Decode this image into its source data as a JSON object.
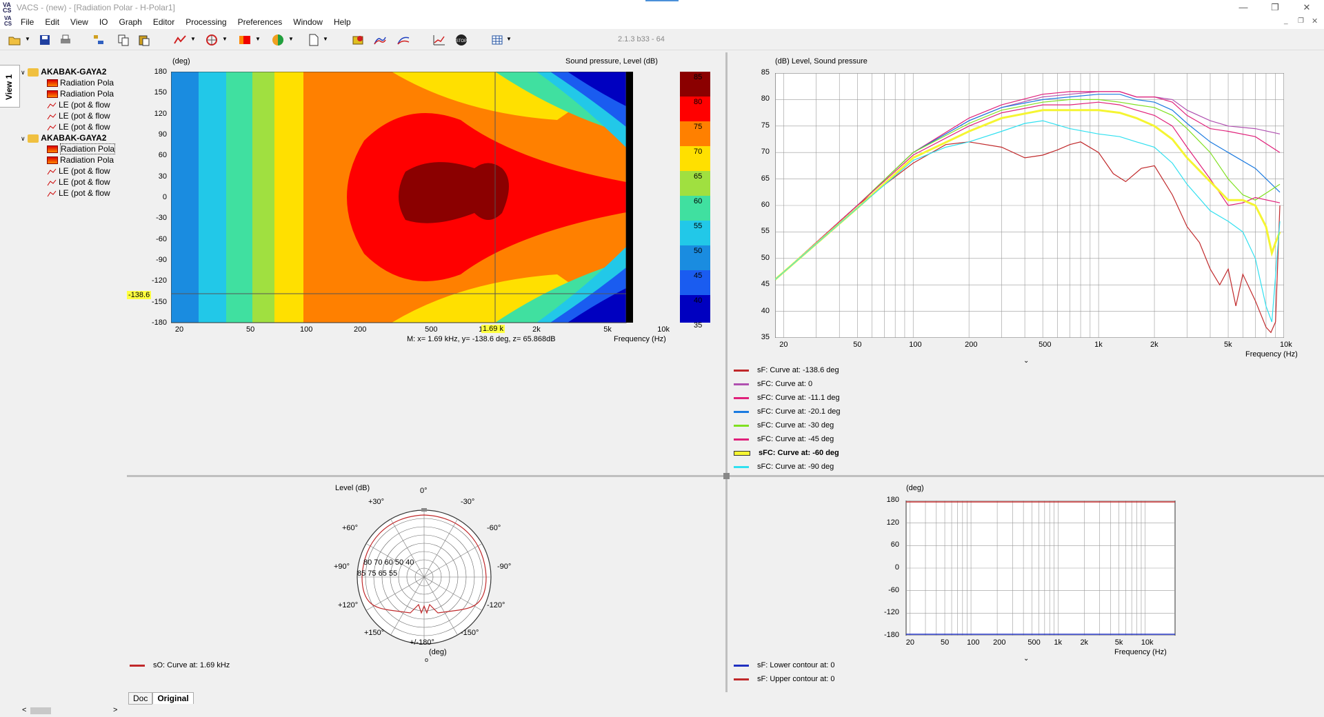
{
  "window": {
    "title": "VACS - (new) - [Radiation Polar - H-Polar1]",
    "version": "2.1.3 b33 - 64"
  },
  "menu": [
    "File",
    "Edit",
    "View",
    "IO",
    "Graph",
    "Editor",
    "Processing",
    "Preferences",
    "Window",
    "Help"
  ],
  "sidebar": {
    "tab": "View 1",
    "groups": [
      {
        "label": "AKABAK-GAYA2",
        "items": [
          "Radiation Pola",
          "Radiation Pola",
          "LE (pot & flow",
          "LE (pot & flow",
          "LE (pot & flow"
        ]
      },
      {
        "label": "AKABAK-GAYA2",
        "items": [
          "Radiation Pola",
          "Radiation Pola",
          "LE (pot & flow",
          "LE (pot & flow",
          "LE (pot & flow"
        ]
      }
    ]
  },
  "contour": {
    "ylabel": "(deg)",
    "zlabel": "Sound pressure, Level  (dB)",
    "yticks": [
      "180",
      "150",
      "120",
      "90",
      "60",
      "30",
      "0",
      "-30",
      "-60",
      "-90",
      "-120",
      "-150",
      "-180"
    ],
    "xticks": [
      "20",
      "50",
      "100",
      "200",
      "500",
      "1k",
      "2k",
      "5k",
      "10k"
    ],
    "xlabel": "Frequency  (Hz)",
    "colorbar": [
      "85",
      "80",
      "75",
      "70",
      "65",
      "60",
      "55",
      "50",
      "45",
      "40",
      "35"
    ],
    "cursor_x_label": "1.69 k",
    "cursor_y_label": "-138.6",
    "marker_readout": "M:  x= 1.69 kHz,  y= -138.6 deg,  z= 65.868dB"
  },
  "freq_chart": {
    "title": "(dB)  Level, Sound pressure",
    "yticks": [
      "85",
      "80",
      "75",
      "70",
      "65",
      "60",
      "55",
      "50",
      "45",
      "40",
      "35"
    ],
    "xticks": [
      "20",
      "50",
      "100",
      "200",
      "500",
      "1k",
      "2k",
      "5k",
      "10k"
    ],
    "xlabel": "Frequency  (Hz)",
    "legend": [
      {
        "label": "sF: Curve at: -138.6 deg",
        "color": "#c0282a",
        "bold": false
      },
      {
        "label": "sFC: Curve at: 0",
        "color": "#b050b0",
        "bold": false
      },
      {
        "label": "sFC: Curve at: -11.1 deg",
        "color": "#e0207a",
        "bold": false
      },
      {
        "label": "sFC: Curve at: -20.1 deg",
        "color": "#1a7ae0",
        "bold": false
      },
      {
        "label": "sFC: Curve at: -30 deg",
        "color": "#80e020",
        "bold": false
      },
      {
        "label": "sFC: Curve at: -45 deg",
        "color": "#e0207a",
        "bold": false
      },
      {
        "label": "sFC: Curve at: -60 deg",
        "color": "#f5f532",
        "bold": true
      },
      {
        "label": "sFC: Curve at: -90 deg",
        "color": "#30e0f0",
        "bold": false
      }
    ]
  },
  "chart_data": [
    {
      "type": "line",
      "x_scale": "log",
      "xlim": [
        18,
        10000
      ],
      "ylim": [
        35,
        85
      ],
      "ylabel": "(dB)",
      "title": "Level, Sound pressure",
      "series": [
        {
          "name": "sF: Curve at: -138.6 deg",
          "points": [
            [
              18,
              46
            ],
            [
              50,
              60
            ],
            [
              100,
              68
            ],
            [
              150,
              71.5
            ],
            [
              200,
              72
            ],
            [
              300,
              71
            ],
            [
              400,
              69
            ],
            [
              500,
              69.5
            ],
            [
              600,
              70.5
            ],
            [
              700,
              71.5
            ],
            [
              800,
              72
            ],
            [
              1000,
              70
            ],
            [
              1200,
              66
            ],
            [
              1400,
              64.5
            ],
            [
              1700,
              67
            ],
            [
              2000,
              67.5
            ],
            [
              2500,
              62
            ],
            [
              3000,
              56
            ],
            [
              3500,
              53
            ],
            [
              4000,
              48
            ],
            [
              4500,
              45
            ],
            [
              5000,
              48
            ],
            [
              5500,
              41
            ],
            [
              6000,
              47
            ],
            [
              7000,
              42
            ],
            [
              8000,
              37
            ],
            [
              8500,
              36
            ],
            [
              9000,
              38
            ],
            [
              9500,
              60
            ]
          ]
        },
        {
          "name": "sFC: Curve at: 0",
          "points": [
            [
              18,
              46
            ],
            [
              50,
              60
            ],
            [
              100,
              70
            ],
            [
              200,
              76
            ],
            [
              300,
              78.5
            ],
            [
              500,
              80.5
            ],
            [
              700,
              81
            ],
            [
              1000,
              81.5
            ],
            [
              1300,
              81.5
            ],
            [
              1600,
              80.5
            ],
            [
              2000,
              80.5
            ],
            [
              2500,
              80
            ],
            [
              3000,
              78
            ],
            [
              4000,
              76
            ],
            [
              5000,
              75
            ],
            [
              7000,
              74.5
            ],
            [
              9500,
              73.5
            ]
          ]
        },
        {
          "name": "sFC: Curve at: -11.1 deg",
          "points": [
            [
              18,
              46
            ],
            [
              50,
              60
            ],
            [
              100,
              70
            ],
            [
              200,
              76.5
            ],
            [
              300,
              79
            ],
            [
              500,
              81
            ],
            [
              700,
              81.5
            ],
            [
              1000,
              81.5
            ],
            [
              1300,
              81.5
            ],
            [
              1600,
              80.5
            ],
            [
              2000,
              80.5
            ],
            [
              2500,
              79.5
            ],
            [
              3000,
              77
            ],
            [
              4000,
              74.5
            ],
            [
              5000,
              74
            ],
            [
              7000,
              73
            ],
            [
              9500,
              70
            ]
          ]
        },
        {
          "name": "sFC: Curve at: -20.1 deg",
          "points": [
            [
              18,
              46
            ],
            [
              50,
              60
            ],
            [
              100,
              70
            ],
            [
              200,
              76
            ],
            [
              300,
              78.5
            ],
            [
              500,
              80
            ],
            [
              700,
              80.5
            ],
            [
              1000,
              81
            ],
            [
              1300,
              81
            ],
            [
              1600,
              80
            ],
            [
              2000,
              79.5
            ],
            [
              2500,
              78
            ],
            [
              3000,
              75.5
            ],
            [
              4000,
              72
            ],
            [
              5000,
              70
            ],
            [
              7000,
              67
            ],
            [
              9500,
              62.5
            ]
          ]
        },
        {
          "name": "sFC: Curve at: -30 deg",
          "points": [
            [
              18,
              46
            ],
            [
              50,
              60
            ],
            [
              100,
              70
            ],
            [
              200,
              75.5
            ],
            [
              300,
              78
            ],
            [
              500,
              79.5
            ],
            [
              700,
              80
            ],
            [
              1000,
              80
            ],
            [
              1300,
              79.5
            ],
            [
              1600,
              79
            ],
            [
              2000,
              78.5
            ],
            [
              2500,
              77
            ],
            [
              3000,
              74.5
            ],
            [
              4000,
              70
            ],
            [
              5000,
              65
            ],
            [
              6000,
              62
            ],
            [
              7000,
              61
            ],
            [
              9500,
              64
            ]
          ]
        },
        {
          "name": "sFC: Curve at: -45 deg",
          "points": [
            [
              18,
              46
            ],
            [
              50,
              60
            ],
            [
              100,
              69.5
            ],
            [
              200,
              75
            ],
            [
              300,
              77.5
            ],
            [
              500,
              79
            ],
            [
              700,
              79
            ],
            [
              1000,
              79.5
            ],
            [
              1300,
              79
            ],
            [
              1600,
              78
            ],
            [
              2000,
              77
            ],
            [
              2500,
              75
            ],
            [
              3000,
              71
            ],
            [
              4000,
              65
            ],
            [
              5000,
              60
            ],
            [
              6000,
              60.5
            ],
            [
              7000,
              61.5
            ],
            [
              9500,
              60.5
            ]
          ]
        },
        {
          "name": "sFC: Curve at: -60 deg",
          "points": [
            [
              18,
              46
            ],
            [
              50,
              59.5
            ],
            [
              100,
              69
            ],
            [
              200,
              74
            ],
            [
              300,
              76.5
            ],
            [
              500,
              78
            ],
            [
              700,
              78
            ],
            [
              1000,
              78
            ],
            [
              1300,
              77.5
            ],
            [
              1600,
              76.5
            ],
            [
              2000,
              75
            ],
            [
              2500,
              72.5
            ],
            [
              3000,
              69
            ],
            [
              4000,
              64.5
            ],
            [
              5000,
              61
            ],
            [
              6000,
              61
            ],
            [
              7000,
              60
            ],
            [
              8000,
              56
            ],
            [
              8600,
              51
            ],
            [
              9000,
              53
            ],
            [
              9500,
              55
            ]
          ]
        },
        {
          "name": "sFC: Curve at: -90 deg",
          "points": [
            [
              18,
              46
            ],
            [
              50,
              59.5
            ],
            [
              100,
              68.5
            ],
            [
              150,
              71
            ],
            [
              200,
              72
            ],
            [
              300,
              74
            ],
            [
              400,
              75.5
            ],
            [
              500,
              76
            ],
            [
              700,
              74.5
            ],
            [
              1000,
              73.5
            ],
            [
              1300,
              73
            ],
            [
              1600,
              72
            ],
            [
              2000,
              71
            ],
            [
              2500,
              68
            ],
            [
              3000,
              64
            ],
            [
              4000,
              59
            ],
            [
              5000,
              57
            ],
            [
              6000,
              55
            ],
            [
              7000,
              50
            ],
            [
              8000,
              41
            ],
            [
              8600,
              38
            ],
            [
              9500,
              57
            ]
          ]
        }
      ]
    }
  ],
  "polar": {
    "title": "Level  (dB)",
    "angles": [
      "0°",
      "-30°",
      "-60°",
      "-90°",
      "-120°",
      "-150°",
      "+/-180°",
      "+150°",
      "+120°",
      "+90°",
      "+60°",
      "+30°"
    ],
    "ring_labels_1": "80 70 60 50 40",
    "ring_labels_2": "85 75 65 55",
    "unit": "(deg)",
    "legend": "sO: Curve at: 1.69 kHz"
  },
  "contour_small": {
    "ylabel": "(deg)",
    "yticks": [
      "180",
      "120",
      "60",
      "0",
      "-60",
      "-120",
      "-180"
    ],
    "xticks": [
      "20",
      "50",
      "100",
      "200",
      "500",
      "1k",
      "2k",
      "5k",
      "10k"
    ],
    "xlabel": "Frequency  (Hz)",
    "legend": [
      {
        "label": "sF: Lower contour at: 0",
        "color": "#2030c0"
      },
      {
        "label": "sF: Upper contour at: 0",
        "color": "#c0282a"
      }
    ]
  },
  "bottom_tabs": [
    "Doc",
    "Original"
  ]
}
